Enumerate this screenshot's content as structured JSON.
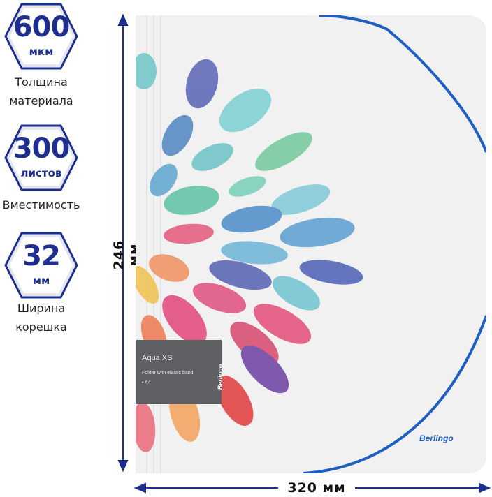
{
  "badges": [
    {
      "value": "600",
      "unit": "мкм",
      "caption_line1": "Толщина",
      "caption_line2": "материала"
    },
    {
      "value": "300",
      "unit": "листов",
      "caption_line1": "Вместимость",
      "caption_line2": ""
    },
    {
      "value": "32",
      "unit": "мм",
      "caption_line1": "Ширина",
      "caption_line2": "корешка"
    }
  ],
  "dimensions": {
    "height": "246 мм",
    "width": "320 мм"
  },
  "product_label": {
    "title": "Aqua XS",
    "subtitle": "Folder with elastic band",
    "size": "• A4",
    "brand": "Berlingo"
  },
  "cover_brand": "Berlingo",
  "colors": {
    "badge_text": "#1f2f8f",
    "dimension_lines": "#1f2f8f",
    "elastic_band": "#1e5fc4",
    "folder": "#f1f1f1",
    "label_bg": "#5e6064"
  }
}
